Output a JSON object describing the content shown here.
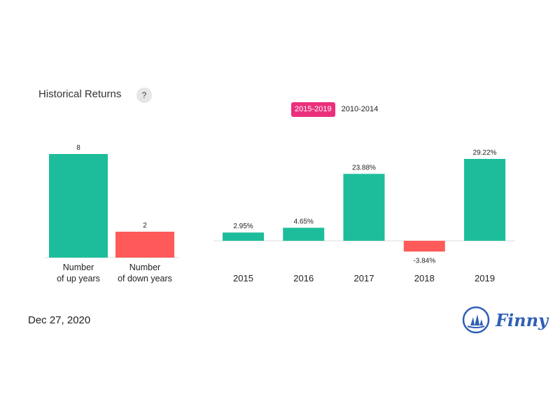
{
  "header": {
    "title": "Historical Returns",
    "help": "?"
  },
  "tabs": [
    {
      "label": "2015-2019",
      "active": true
    },
    {
      "label": "2010-2014",
      "active": false
    }
  ],
  "footer": {
    "date": "Dec 27, 2020",
    "brand": "Finny"
  },
  "colors": {
    "up": "#1dbd9b",
    "down": "#ff5a5a",
    "accent": "#ec2f7c",
    "brand": "#2f5fb5"
  },
  "chart_data": [
    {
      "type": "bar",
      "categories": [
        [
          "Number",
          "of up years"
        ],
        [
          "Number",
          "of down years"
        ]
      ],
      "values": [
        8,
        2
      ],
      "value_labels": [
        "8",
        "2"
      ],
      "ylim": [
        0,
        8
      ]
    },
    {
      "type": "bar",
      "categories": [
        "2015",
        "2016",
        "2017",
        "2018",
        "2019"
      ],
      "values": [
        2.95,
        4.65,
        23.88,
        -3.84,
        29.22
      ],
      "value_labels": [
        "2.95%",
        "4.65%",
        "23.88%",
        "-3.84%",
        "29.22%"
      ],
      "ylim": [
        -3.84,
        29.22
      ]
    }
  ]
}
